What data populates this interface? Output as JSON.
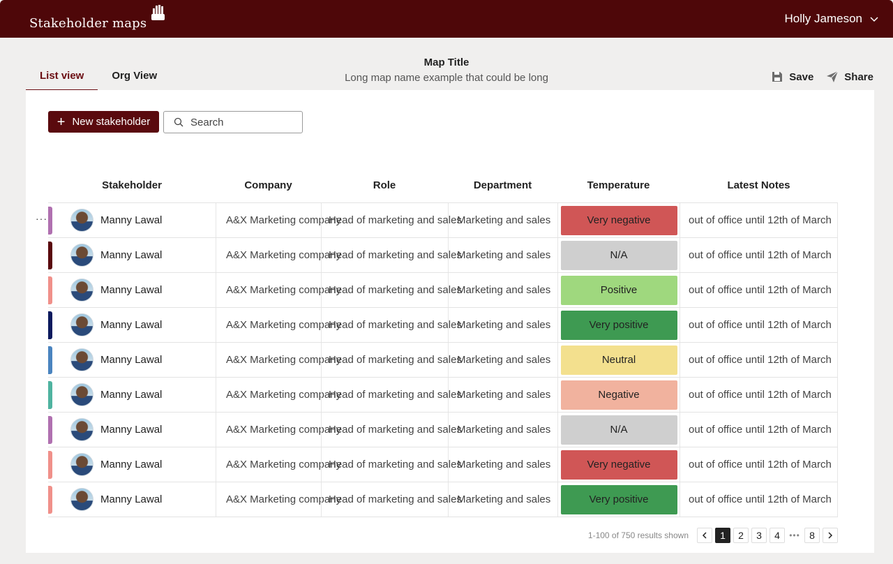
{
  "header": {
    "app_name": "Stakeholder maps",
    "user_name": "Holly Jameson"
  },
  "tabs": [
    {
      "label": "List view",
      "active": true
    },
    {
      "label": "Org View",
      "active": false
    }
  ],
  "map": {
    "title": "Map Title",
    "subtitle": "Long map name example that could be long"
  },
  "actions": {
    "save_label": "Save",
    "share_label": "Share"
  },
  "toolbar": {
    "new_label": "New stakeholder",
    "search_placeholder": "Search"
  },
  "table": {
    "columns": [
      "Stakeholder",
      "Company",
      "Role",
      "Department",
      "Temperature",
      "Latest Notes"
    ],
    "rows": [
      {
        "stripe": "#b070b0",
        "name": "Manny Lawal",
        "company": "A&X Marketing company",
        "role": "Head of marketing and sales",
        "department": "Marketing and sales",
        "temperature": "Very negative",
        "temp_color": "#d05656",
        "notes": "out of office until 12th of March"
      },
      {
        "stripe": "#5a0a0e",
        "name": "Manny Lawal",
        "company": "A&X Marketing company",
        "role": "Head of marketing and sales",
        "department": "Marketing and sales",
        "temperature": "N/A",
        "temp_color": "#cfcfcf",
        "notes": "out of office until 12th of March"
      },
      {
        "stripe": "#f0908a",
        "name": "Manny Lawal",
        "company": "A&X Marketing company",
        "role": "Head of marketing and sales",
        "department": "Marketing and sales",
        "temperature": "Positive",
        "temp_color": "#9fd87e",
        "notes": "out of office until 12th of March"
      },
      {
        "stripe": "#0c1a5e",
        "name": "Manny Lawal",
        "company": "A&X Marketing company",
        "role": "Head of marketing and sales",
        "department": "Marketing and sales",
        "temperature": "Very positive",
        "temp_color": "#3e9a52",
        "notes": "out of office until 12th of March"
      },
      {
        "stripe": "#4a84bf",
        "name": "Manny Lawal",
        "company": "A&X Marketing company",
        "role": "Head of marketing and sales",
        "department": "Marketing and sales",
        "temperature": "Neutral",
        "temp_color": "#f3e08e",
        "notes": "out of office until 12th of March"
      },
      {
        "stripe": "#4fb3a0",
        "name": "Manny Lawal",
        "company": "A&X Marketing company",
        "role": "Head of marketing and sales",
        "department": "Marketing and sales",
        "temperature": "Negative",
        "temp_color": "#f1b29e",
        "notes": "out of office until 12th of March"
      },
      {
        "stripe": "#b070b0",
        "name": "Manny Lawal",
        "company": "A&X Marketing company",
        "role": "Head of marketing and sales",
        "department": "Marketing and sales",
        "temperature": "N/A",
        "temp_color": "#cfcfcf",
        "notes": "out of office until 12th of March"
      },
      {
        "stripe": "#f0908a",
        "name": "Manny Lawal",
        "company": "A&X Marketing company",
        "role": "Head of marketing and sales",
        "department": "Marketing and sales",
        "temperature": "Very negative",
        "temp_color": "#d05656",
        "notes": "out of office until 12th of March"
      },
      {
        "stripe": "#f0908a",
        "name": "Manny Lawal",
        "company": "A&X Marketing company",
        "role": "Head of marketing and sales",
        "department": "Marketing and sales",
        "temperature": "Very positive",
        "temp_color": "#3e9a52",
        "notes": "out of office until 12th of March"
      }
    ]
  },
  "pagination": {
    "info": "1-100 of 750 results shown",
    "pages": [
      "1",
      "2",
      "3",
      "4"
    ],
    "dots": "•••",
    "last": "8",
    "current": "1"
  },
  "row_menu": "···"
}
